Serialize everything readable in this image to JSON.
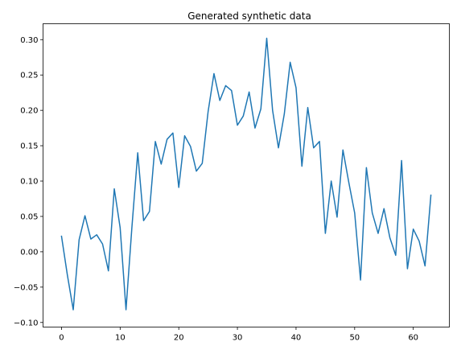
{
  "chart_data": {
    "type": "line",
    "title": "Generated synthetic data",
    "xlabel": "",
    "ylabel": "",
    "xlim": [
      -3.15,
      66.15
    ],
    "ylim": [
      -0.1065,
      0.3225
    ],
    "xticks": [
      0,
      10,
      20,
      30,
      40,
      50,
      60
    ],
    "xtick_labels": [
      "0",
      "10",
      "20",
      "30",
      "40",
      "50",
      "60"
    ],
    "yticks": [
      -0.1,
      -0.05,
      0.0,
      0.05,
      0.1,
      0.15,
      0.2,
      0.25,
      0.3
    ],
    "ytick_labels": [
      "−0.10",
      "−0.05",
      "0.00",
      "0.05",
      "0.10",
      "0.15",
      "0.20",
      "0.25",
      "0.30"
    ],
    "grid": false,
    "series": [
      {
        "color": "#1f77b4",
        "x": [
          0,
          1,
          2,
          3,
          4,
          5,
          6,
          7,
          8,
          9,
          10,
          11,
          12,
          13,
          14,
          15,
          16,
          17,
          18,
          19,
          20,
          21,
          22,
          23,
          24,
          25,
          26,
          27,
          28,
          29,
          30,
          31,
          32,
          33,
          34,
          35,
          36,
          37,
          38,
          39,
          40,
          41,
          42,
          43,
          44,
          45,
          46,
          47,
          48,
          49,
          50,
          51,
          52,
          53,
          54,
          55,
          56,
          57,
          58,
          59,
          60,
          61,
          62,
          63
        ],
        "values": [
          0.022,
          -0.033,
          -0.082,
          0.017,
          0.051,
          0.018,
          0.024,
          0.011,
          -0.027,
          0.089,
          0.034,
          -0.082,
          0.034,
          0.14,
          0.044,
          0.057,
          0.156,
          0.124,
          0.159,
          0.168,
          0.091,
          0.164,
          0.149,
          0.114,
          0.125,
          0.198,
          0.252,
          0.214,
          0.235,
          0.228,
          0.179,
          0.192,
          0.226,
          0.175,
          0.202,
          0.302,
          0.2,
          0.147,
          0.195,
          0.268,
          0.232,
          0.121,
          0.204,
          0.147,
          0.156,
          0.026,
          0.1,
          0.049,
          0.144,
          0.098,
          0.055,
          -0.04,
          0.119,
          0.055,
          0.026,
          0.061,
          0.02,
          -0.005,
          0.129,
          -0.024,
          0.032,
          0.015,
          -0.02,
          0.08
        ]
      }
    ]
  }
}
